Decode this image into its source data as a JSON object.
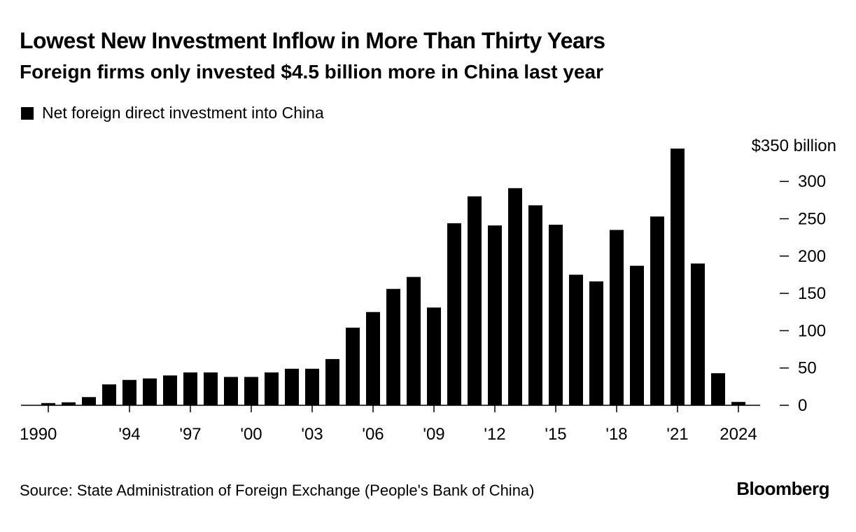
{
  "chart_data": {
    "type": "bar",
    "title": "Lowest New Investment Inflow in More Than Thirty Years",
    "subtitle": "Foreign firms only invested $4.5 billion more in China last year",
    "legend": [
      "Net foreign direct investment into China"
    ],
    "ylabel": "$350 billion",
    "ylim": [
      0,
      350
    ],
    "y_ticks": [
      0,
      50,
      100,
      150,
      200,
      250,
      300
    ],
    "y_tick_labels": [
      "0",
      "50",
      "100",
      "150",
      "200",
      "250",
      "300"
    ],
    "x_tick_labels": [
      {
        "year": 1990,
        "label": "1990"
      },
      {
        "year": 1994,
        "label": "'94"
      },
      {
        "year": 1997,
        "label": "'97"
      },
      {
        "year": 2000,
        "label": "'00"
      },
      {
        "year": 2003,
        "label": "'03"
      },
      {
        "year": 2006,
        "label": "'06"
      },
      {
        "year": 2009,
        "label": "'09"
      },
      {
        "year": 2012,
        "label": "'12"
      },
      {
        "year": 2015,
        "label": "'15"
      },
      {
        "year": 2018,
        "label": "'18"
      },
      {
        "year": 2021,
        "label": "'21"
      },
      {
        "year": 2024,
        "label": "2024"
      }
    ],
    "categories": [
      1990,
      1991,
      1992,
      1993,
      1994,
      1995,
      1996,
      1997,
      1998,
      1999,
      2000,
      2001,
      2002,
      2003,
      2004,
      2005,
      2006,
      2007,
      2008,
      2009,
      2010,
      2011,
      2012,
      2013,
      2014,
      2015,
      2016,
      2017,
      2018,
      2019,
      2020,
      2021,
      2022,
      2023,
      2024
    ],
    "values": [
      3,
      4,
      11,
      28,
      34,
      36,
      40,
      44,
      44,
      38,
      38,
      44,
      49,
      49,
      62,
      104,
      125,
      156,
      172,
      131,
      244,
      280,
      241,
      291,
      268,
      242,
      175,
      166,
      235,
      187,
      253,
      344,
      190,
      43,
      4.5
    ]
  },
  "footer": {
    "source": "Source: State Administration of Foreign Exchange (People's Bank of China)",
    "brand": "Bloomberg"
  }
}
